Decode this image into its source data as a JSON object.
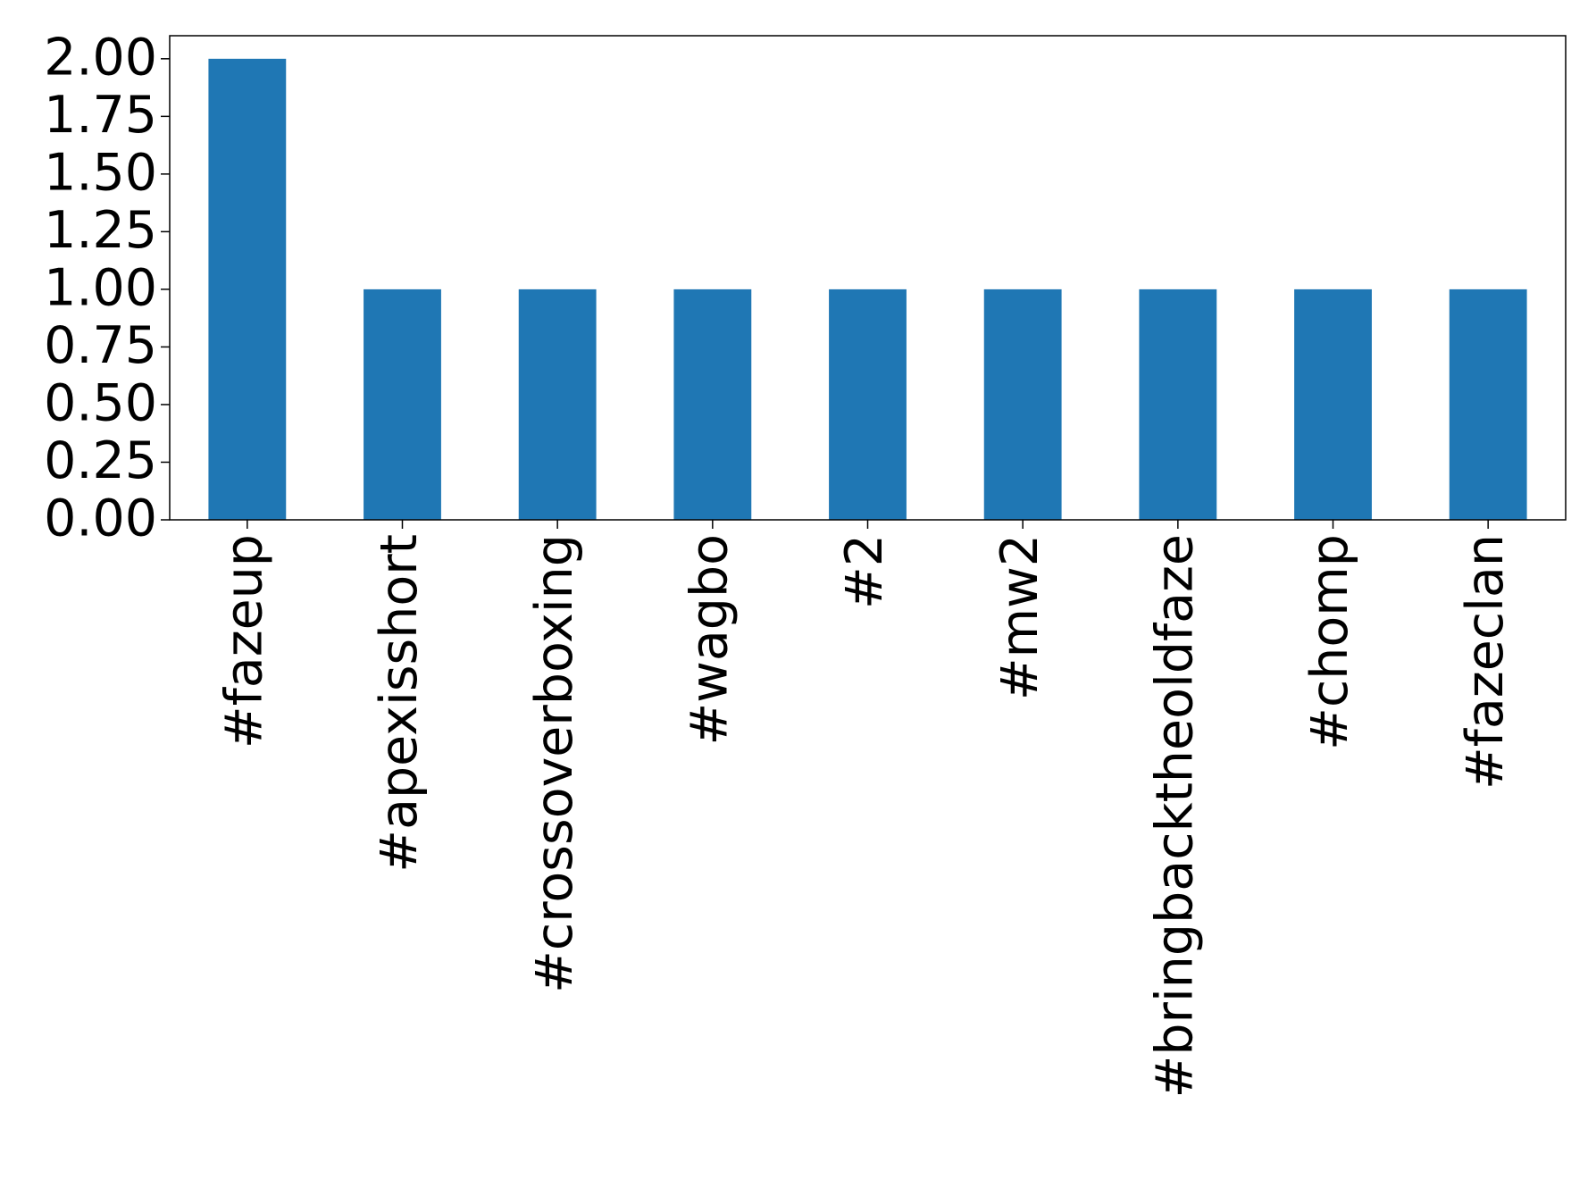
{
  "chart_data": {
    "type": "bar",
    "categories": [
      "#fazeup",
      "#apexisshort",
      "#crossoverboxing",
      "#wagbo",
      "#2",
      "#mw2",
      "#bringbacktheoldfaze",
      "#chomp",
      "#fazeclan"
    ],
    "values": [
      2,
      1,
      1,
      1,
      1,
      1,
      1,
      1,
      1
    ],
    "color": "#1f77b4",
    "ylim": [
      0,
      2.1
    ],
    "yticks": [
      {
        "value": 0,
        "label": "0.00"
      },
      {
        "value": 0.25,
        "label": "0.25"
      },
      {
        "value": 0.5,
        "label": "0.50"
      },
      {
        "value": 0.75,
        "label": "0.75"
      },
      {
        "value": 1,
        "label": "1.00"
      },
      {
        "value": 1.25,
        "label": "1.25"
      },
      {
        "value": 1.5,
        "label": "1.50"
      },
      {
        "value": 1.75,
        "label": "1.75"
      },
      {
        "value": 2,
        "label": "2.00"
      }
    ],
    "grid": false
  }
}
